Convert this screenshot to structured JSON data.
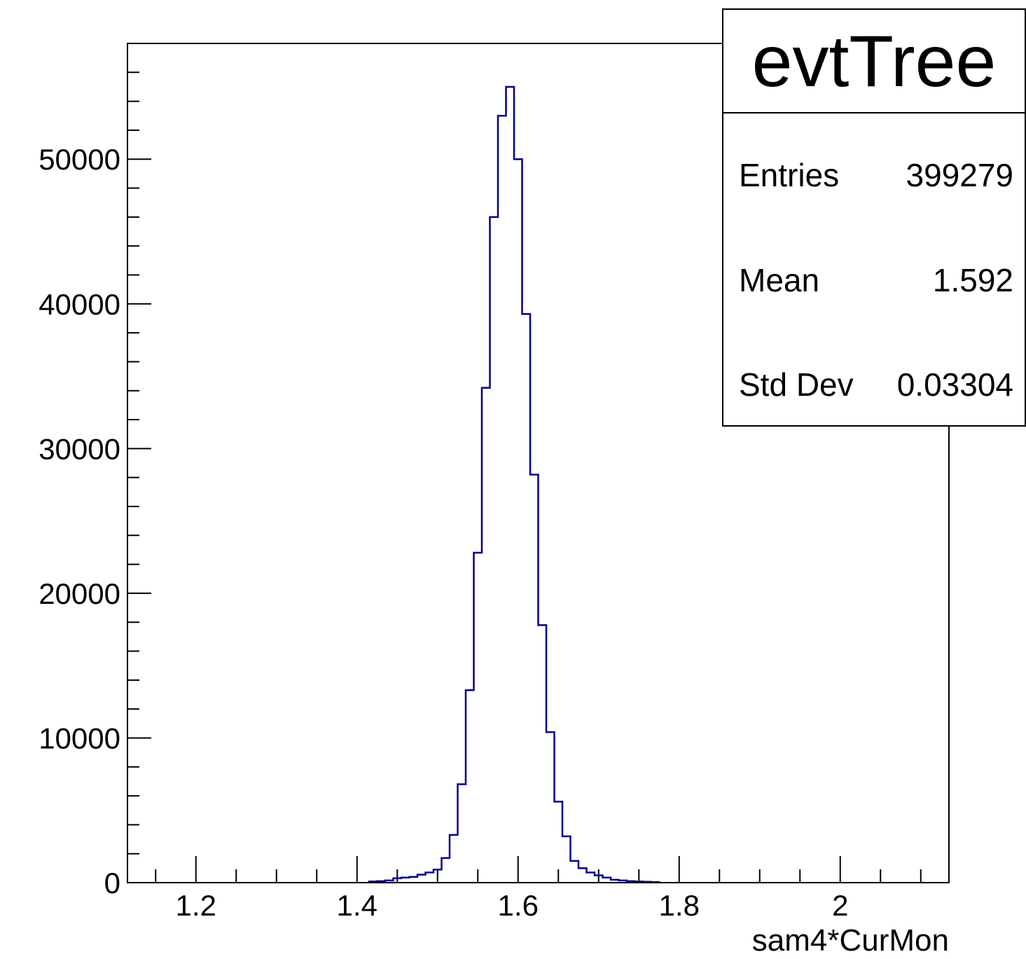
{
  "chart_data": {
    "type": "bar",
    "style": "step-histogram",
    "title": "",
    "xlabel": "sam4*CurMon",
    "ylabel": "",
    "xlim": [
      1.115,
      2.135
    ],
    "ylim": [
      0,
      58000
    ],
    "xticks": [
      1.2,
      1.4,
      1.6,
      1.8,
      2.0
    ],
    "xtick_labels": [
      "1.2",
      "1.4",
      "1.6",
      "1.8",
      "2"
    ],
    "yticks": [
      0,
      10000,
      20000,
      30000,
      40000,
      50000
    ],
    "ytick_labels": [
      "0",
      "10000",
      "20000",
      "30000",
      "40000",
      "50000"
    ],
    "line_color": "#00008b",
    "bin_width": 0.01,
    "x": [
      1.42,
      1.43,
      1.44,
      1.45,
      1.46,
      1.47,
      1.48,
      1.49,
      1.5,
      1.51,
      1.52,
      1.53,
      1.54,
      1.55,
      1.56,
      1.57,
      1.58,
      1.59,
      1.6,
      1.61,
      1.62,
      1.63,
      1.64,
      1.65,
      1.66,
      1.67,
      1.68,
      1.69,
      1.7,
      1.71,
      1.72,
      1.73,
      1.74,
      1.75,
      1.76,
      1.77
    ],
    "values": [
      80,
      100,
      150,
      300,
      350,
      400,
      550,
      700,
      900,
      1700,
      3300,
      6800,
      13300,
      22800,
      34200,
      46000,
      53000,
      55000,
      50000,
      39300,
      28200,
      17800,
      10400,
      5600,
      3200,
      1500,
      1000,
      700,
      500,
      350,
      200,
      150,
      100,
      80,
      60,
      40
    ]
  },
  "stats": {
    "title": "evtTree",
    "rows": [
      {
        "label": "Entries",
        "value": "399279"
      },
      {
        "label": "Mean",
        "value": "1.592"
      },
      {
        "label": "Std Dev",
        "value": "0.03304"
      }
    ]
  }
}
